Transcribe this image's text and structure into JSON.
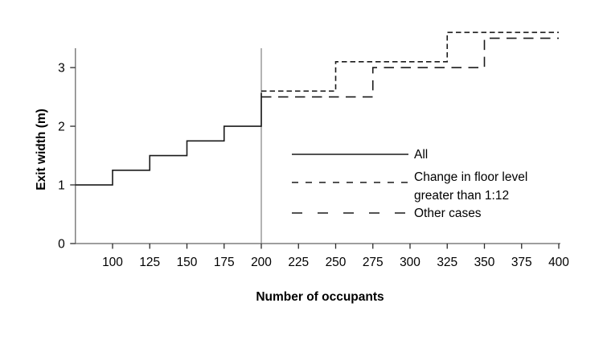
{
  "chart_data": {
    "type": "line",
    "subtype": "step",
    "title": "",
    "xlabel": "Number of occupants",
    "ylabel": "Exit width (m)",
    "xlim": [
      75,
      400
    ],
    "ylim": [
      0,
      3.33
    ],
    "x_ticks": [
      100,
      125,
      150,
      175,
      200,
      225,
      250,
      275,
      300,
      325,
      350,
      375,
      400
    ],
    "y_ticks": [
      0,
      1,
      2,
      3
    ],
    "grid": false,
    "legend_position": "inside-right-middle",
    "reference_line_x": 200,
    "series": [
      {
        "name": "All",
        "line_style": "solid",
        "legend_label_lines": [
          "All"
        ],
        "points": [
          [
            75,
            1.0
          ],
          [
            100,
            1.0
          ],
          [
            100,
            1.25
          ],
          [
            125,
            1.25
          ],
          [
            125,
            1.5
          ],
          [
            150,
            1.5
          ],
          [
            150,
            1.75
          ],
          [
            175,
            1.75
          ],
          [
            175,
            2.0
          ],
          [
            200,
            2.0
          ],
          [
            200,
            2.57
          ]
        ]
      },
      {
        "name": "Change in floor level greater than 1:12",
        "line_style": "short-dash",
        "legend_label_lines": [
          "Change in floor level",
          "greater than 1:12"
        ],
        "points": [
          [
            200,
            2.6
          ],
          [
            250,
            2.6
          ],
          [
            250,
            3.1
          ],
          [
            325,
            3.1
          ],
          [
            325,
            3.6
          ],
          [
            400,
            3.6
          ]
        ]
      },
      {
        "name": "Other cases",
        "line_style": "long-dash",
        "legend_label_lines": [
          "Other cases"
        ],
        "points": [
          [
            200,
            2.5
          ],
          [
            275,
            2.5
          ],
          [
            275,
            3.0
          ],
          [
            350,
            3.0
          ],
          [
            350,
            3.5
          ],
          [
            400,
            3.5
          ]
        ]
      }
    ],
    "colors": {
      "line": "#1a1a1a",
      "axis": "#7f7f7f",
      "tick": "#2b2b2b",
      "reference_line": "#8a8a8a",
      "text": "#000000",
      "background": "#ffffff"
    }
  }
}
